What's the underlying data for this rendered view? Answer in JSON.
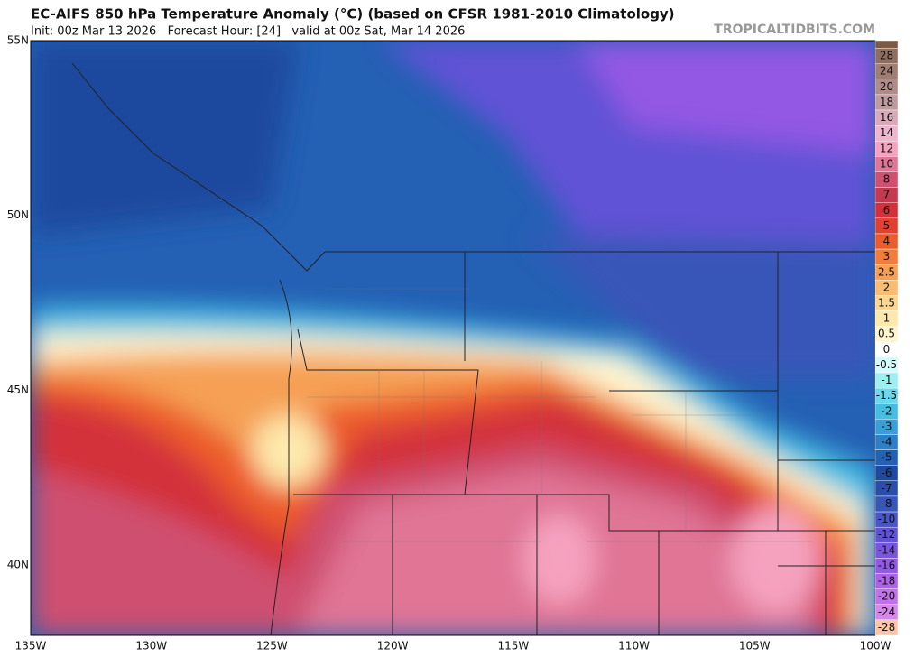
{
  "header": {
    "title": "EC-AIFS 850 hPa Temperature Anomaly (°C) (based on CFSR 1981-2010 Climatology)",
    "subtitle": "Init: 00z Mar 13 2026   Forecast Hour: [24]   valid at 00z Sat, Mar 14 2026",
    "site": "TROPICALTIDBITS.COM"
  },
  "map": {
    "lat_labels": [
      "55N",
      "50N",
      "45N",
      "40N"
    ],
    "lon_labels": [
      "135W",
      "130W",
      "125W",
      "120W",
      "115W",
      "110W",
      "105W",
      "100W"
    ]
  },
  "colorbar": {
    "levels": [
      null,
      28,
      24,
      20,
      18,
      16,
      14,
      12,
      10,
      8,
      7,
      6,
      5,
      4,
      3,
      2.5,
      2,
      1.5,
      1,
      0.5,
      0,
      -0.5,
      -1,
      -1.5,
      -2,
      -3,
      -4,
      -5,
      -6,
      -7,
      -8,
      -10,
      -12,
      -14,
      -16,
      -18,
      -20,
      -24,
      -28
    ],
    "colors": [
      "#7a5a45",
      "#8e6f5f",
      "#a07e72",
      "#b08c88",
      "#c19aa0",
      "#d8a9b8",
      "#eeb5cc",
      "#f5a2bf",
      "#e07595",
      "#cf5070",
      "#c43950",
      "#d3303a",
      "#e0412e",
      "#ec5b2c",
      "#f27d3a",
      "#f5a055",
      "#f8bd70",
      "#fbd68e",
      "#fde9ac",
      "#fff6d0",
      "#ffffff",
      "#d5f8fa",
      "#9eeef2",
      "#6ad9eb",
      "#45bee2",
      "#3a9fd6",
      "#2f7fc6",
      "#2460b4",
      "#1d4a9e",
      "#2a4ea8",
      "#3856b8",
      "#4a55c8",
      "#6153d5",
      "#7a55de",
      "#9358e4",
      "#ad62e8",
      "#c371ea",
      "#d587ea",
      "#fdc4a8"
    ]
  }
}
